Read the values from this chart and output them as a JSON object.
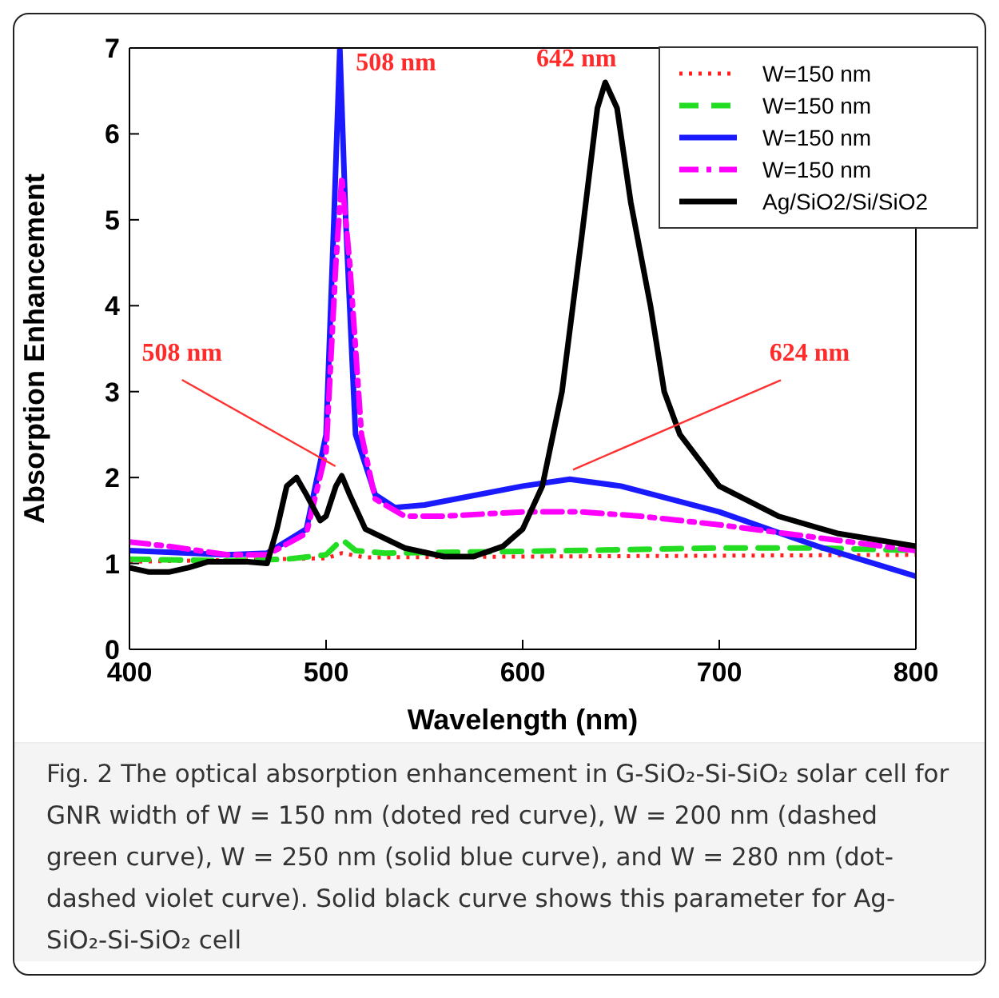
{
  "chart_data": {
    "type": "line",
    "xlabel": "Wavelength (nm)",
    "ylabel": "Absorption Enhancement",
    "xlim": [
      400,
      800
    ],
    "xticks": [
      400,
      500,
      600,
      700,
      800
    ],
    "ylim": [
      0,
      7
    ],
    "yticks": [
      0,
      1,
      2,
      3,
      4,
      5,
      6,
      7
    ],
    "grid": false,
    "legend": "top right",
    "marker": "none",
    "series": [
      {
        "name": "W=150 nm",
        "color": "#ff2020",
        "line_style": "dotted",
        "x": [
          400,
          450,
          500,
          508,
          520,
          600,
          700,
          800
        ],
        "values": [
          1.02,
          1.04,
          1.06,
          1.12,
          1.07,
          1.08,
          1.09,
          1.1
        ]
      },
      {
        "name": "W=150 nm",
        "color": "#22dd22",
        "line_style": "dashed",
        "x": [
          400,
          450,
          480,
          500,
          508,
          515,
          530,
          600,
          650,
          700,
          750,
          800
        ],
        "values": [
          1.05,
          1.03,
          1.05,
          1.1,
          1.28,
          1.15,
          1.12,
          1.14,
          1.16,
          1.18,
          1.18,
          1.15
        ]
      },
      {
        "name": "W=150 nm",
        "color": "#1a1aff",
        "line_style": "solid",
        "x": [
          400,
          450,
          470,
          490,
          500,
          504,
          507,
          510,
          515,
          525,
          535,
          550,
          600,
          624,
          650,
          700,
          750,
          800
        ],
        "values": [
          1.15,
          1.1,
          1.12,
          1.4,
          2.5,
          5,
          7,
          5,
          2.5,
          1.8,
          1.65,
          1.68,
          1.9,
          1.98,
          1.9,
          1.6,
          1.2,
          0.85
        ]
      },
      {
        "name": "W=150 nm",
        "color": "#ff00ff",
        "line_style": "dashdot",
        "x": [
          400,
          420,
          450,
          470,
          490,
          500,
          505,
          508,
          512,
          518,
          525,
          540,
          560,
          600,
          630,
          660,
          700,
          750,
          800
        ],
        "values": [
          1.25,
          1.2,
          1.1,
          1.1,
          1.35,
          2.3,
          4.5,
          5.5,
          4.5,
          2.5,
          1.75,
          1.55,
          1.55,
          1.6,
          1.6,
          1.55,
          1.45,
          1.3,
          1.15
        ]
      },
      {
        "name": "Ag/SiO2/Si/SiO2",
        "color": "#000000",
        "line_style": "solid",
        "x": [
          400,
          410,
          420,
          430,
          440,
          460,
          470,
          475,
          480,
          485,
          490,
          497,
          500,
          505,
          508,
          512,
          520,
          540,
          560,
          575,
          590,
          600,
          610,
          620,
          630,
          638,
          642,
          648,
          655,
          665,
          672,
          680,
          700,
          730,
          760,
          800
        ],
        "values": [
          0.95,
          0.9,
          0.9,
          0.95,
          1.02,
          1.02,
          1.0,
          1.4,
          1.9,
          2.0,
          1.8,
          1.5,
          1.55,
          1.9,
          2.02,
          1.8,
          1.4,
          1.18,
          1.08,
          1.08,
          1.2,
          1.4,
          1.9,
          3.0,
          4.8,
          6.3,
          6.6,
          6.3,
          5.2,
          4.0,
          3.0,
          2.5,
          1.9,
          1.55,
          1.35,
          1.2
        ]
      }
    ],
    "annotations": [
      {
        "text": "508 nm",
        "x": 507,
        "y": 7
      },
      {
        "text": "642 nm",
        "x": 642,
        "y": 6.6
      },
      {
        "text": "508 nm",
        "x": 508,
        "y": 2.02
      },
      {
        "text": "624 nm",
        "x": 624,
        "y": 1.98
      },
      "Fig. 2 The optical absorption enhancement in G-SiO₂-Si-SiO₂ solar cell for GNR width of W = 150 nm (doted red curve), W = 200 nm (dashed green curve), W = 250 nm (solid blue curve), and W = 280 nm (dot-dashed violet curve). Solid black curve shows this parameter for Ag-SiO₂-Si-SiO₂ cell"
    ]
  }
}
